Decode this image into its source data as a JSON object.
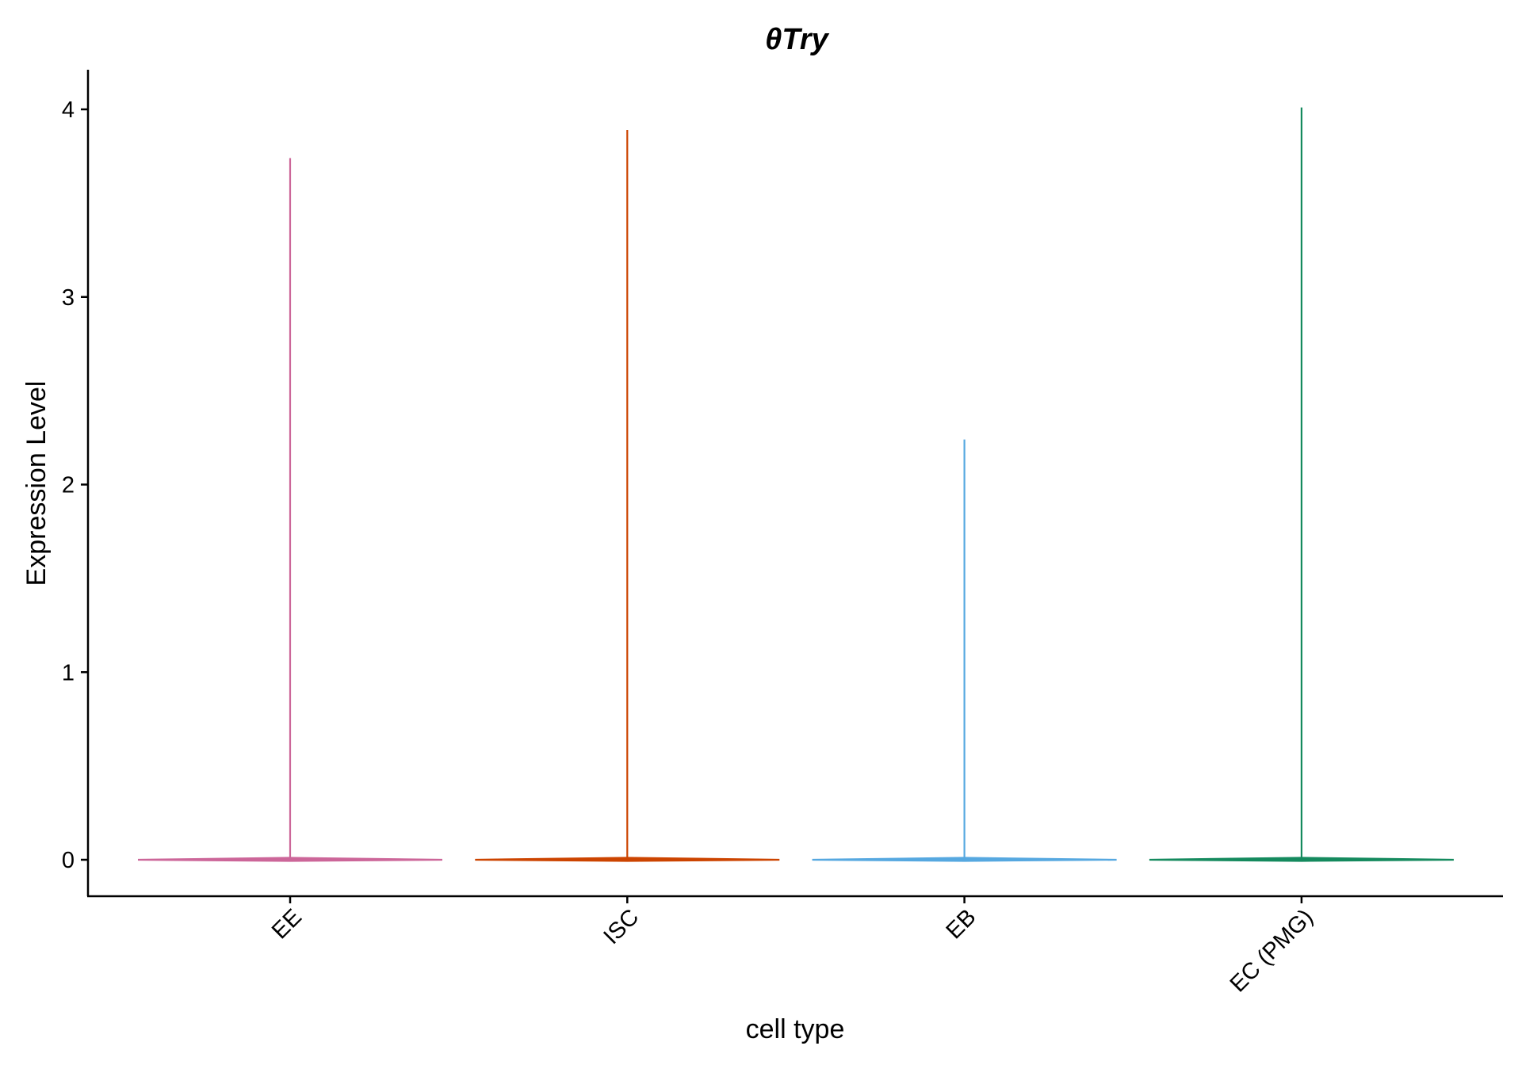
{
  "chart_data": {
    "type": "violin",
    "title": "θTry",
    "xlabel": "cell type",
    "ylabel": "Expression Level",
    "categories": [
      "EE",
      "ISC",
      "EB",
      "EC (PMG)"
    ],
    "colors": [
      "#cc6699",
      "#cc4400",
      "#56a8e0",
      "#158a5e"
    ],
    "max_values": [
      3.74,
      3.89,
      2.24,
      4.01
    ],
    "median_values": [
      0,
      0,
      0,
      0
    ],
    "yticks": [
      0,
      1,
      2,
      3,
      4
    ],
    "ylim": [
      -0.2,
      4.2
    ],
    "grid": false,
    "legend": "none"
  }
}
